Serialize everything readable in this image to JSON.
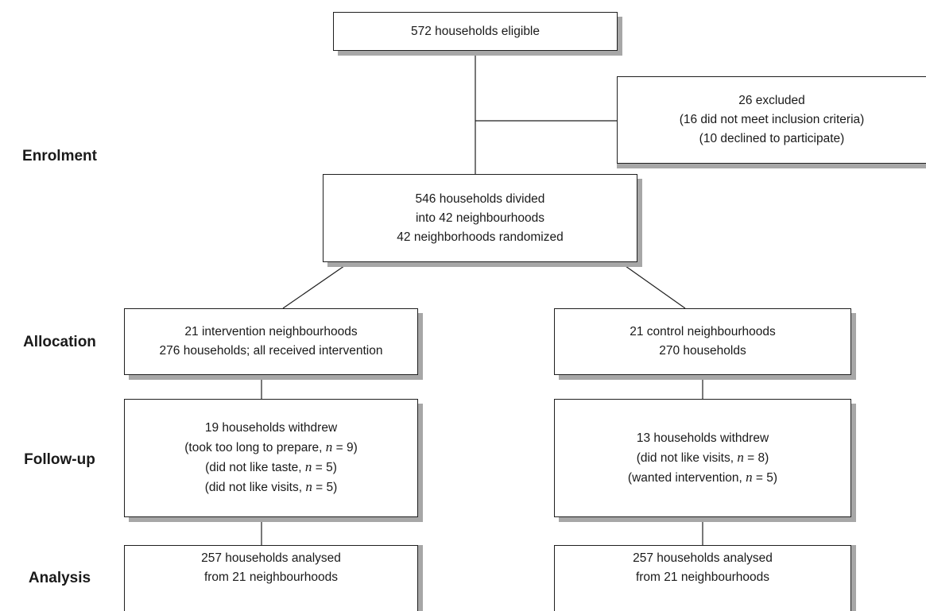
{
  "stages": {
    "enrolment": "Enrolment",
    "allocation": "Allocation",
    "follow_up": "Follow-up",
    "analysis": "Analysis"
  },
  "boxes": {
    "eligible": [
      "572 households eligible"
    ],
    "excluded": [
      "26 excluded",
      "(16 did not meet inclusion criteria)",
      "(10 declined to participate)"
    ],
    "randomized": [
      "546 households divided",
      "into 42 neighbourhoods",
      "42 neighborhoods randomized"
    ],
    "intervention_alloc": [
      "21 intervention neighbourhoods",
      "276 households; all received intervention"
    ],
    "control_alloc": [
      "21 control neighbourhoods",
      "270 households"
    ],
    "intervention_withdrew": {
      "line1": "19 households withdrew",
      "reasons": [
        {
          "text": "(took too long to prepare, ",
          "n_label": "n",
          "eq": " = 9)"
        },
        {
          "text": "(did not like taste, ",
          "n_label": "n",
          "eq": " = 5)"
        },
        {
          "text": "(did not like visits, ",
          "n_label": "n",
          "eq": " = 5)"
        }
      ]
    },
    "control_withdrew": {
      "line1": "13 households withdrew",
      "reasons": [
        {
          "text": "(did not like visits, ",
          "n_label": "n",
          "eq": " = 8)"
        },
        {
          "text": "(wanted intervention, ",
          "n_label": "n",
          "eq": " = 5)"
        }
      ]
    },
    "intervention_analysis": [
      "257 households analysed",
      "from 21 neighbourhoods"
    ],
    "control_analysis": [
      "257 households analysed",
      "from 21 neighbourhoods"
    ]
  }
}
